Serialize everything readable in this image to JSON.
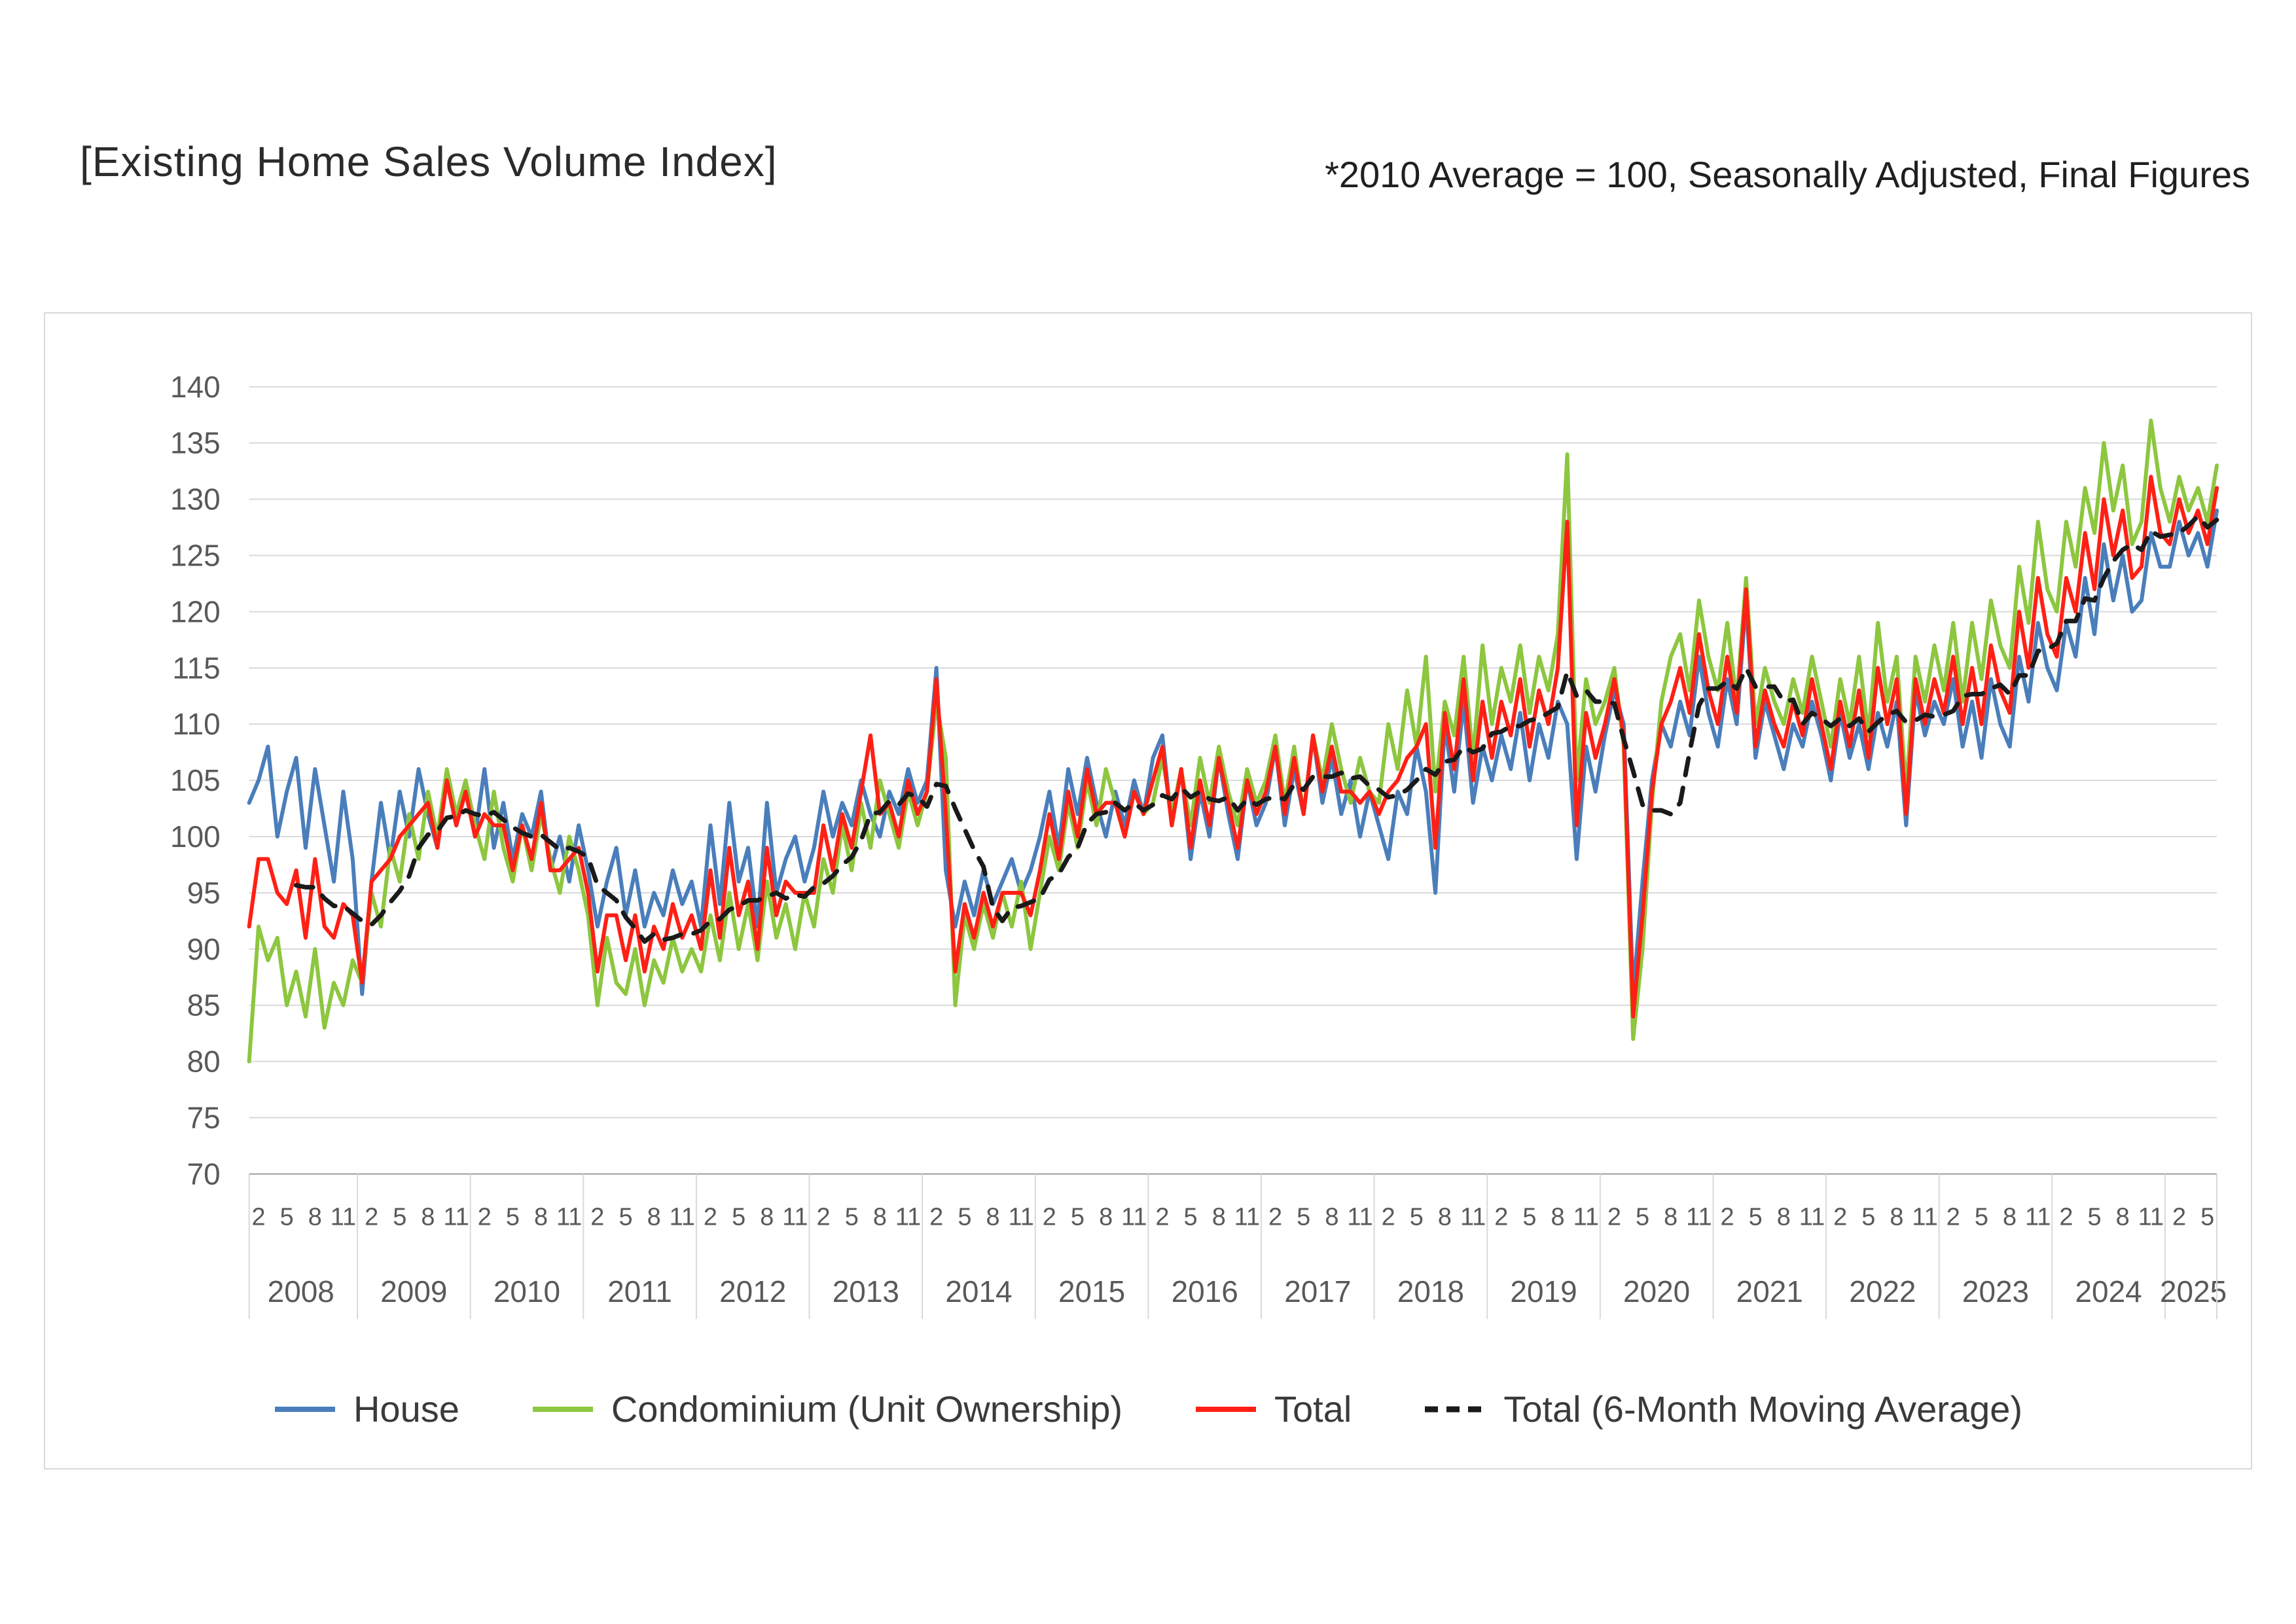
{
  "header": {
    "title": "[Existing Home Sales Volume Index]",
    "note": "*2010 Average = 100, Seasonally Adjusted, Final Figures"
  },
  "chart_data": {
    "type": "line",
    "title": "[Existing Home Sales Volume Index]",
    "subtitle": "*2010 Average = 100, Seasonally Adjusted, Final Figures",
    "xlabel": "",
    "ylabel": "",
    "ylim": [
      70,
      140
    ],
    "ytick_step": 5,
    "grid": true,
    "legend_position": "bottom",
    "start_year": 2008,
    "start_month": 1,
    "x_tick_months": [
      2,
      5,
      8,
      11
    ],
    "years": [
      2008,
      2009,
      2010,
      2011,
      2012,
      2013,
      2014,
      2015,
      2016,
      2017,
      2018,
      2019,
      2020,
      2021,
      2022,
      2023,
      2024,
      2025
    ],
    "series": [
      {
        "name": "House",
        "color": "#4A7EBB",
        "style": "solid",
        "values": [
          103,
          105,
          108,
          100,
          104,
          107,
          99,
          106,
          101,
          96,
          104,
          98,
          86,
          96,
          103,
          98,
          104,
          100,
          106,
          102,
          99,
          105,
          101,
          104,
          100,
          106,
          99,
          103,
          98,
          102,
          100,
          104,
          97,
          100,
          96,
          101,
          97,
          92,
          96,
          99,
          93,
          97,
          92,
          95,
          93,
          97,
          94,
          96,
          92,
          101,
          94,
          103,
          96,
          99,
          92,
          103,
          95,
          98,
          100,
          96,
          99,
          104,
          100,
          103,
          101,
          105,
          102,
          100,
          104,
          102,
          106,
          103,
          105,
          115,
          97,
          92,
          96,
          93,
          97,
          94,
          96,
          98,
          95,
          97,
          100,
          104,
          99,
          106,
          102,
          107,
          103,
          100,
          104,
          101,
          105,
          102,
          107,
          109,
          101,
          106,
          98,
          104,
          100,
          107,
          102,
          98,
          105,
          101,
          103,
          108,
          101,
          106,
          102,
          109,
          103,
          107,
          102,
          105,
          100,
          104,
          101,
          98,
          104,
          102,
          108,
          104,
          95,
          110,
          104,
          112,
          103,
          108,
          105,
          109,
          106,
          111,
          105,
          110,
          107,
          112,
          110,
          98,
          108,
          104,
          109,
          113,
          110,
          86,
          96,
          105,
          110,
          108,
          112,
          109,
          116,
          111,
          108,
          114,
          110,
          121,
          107,
          112,
          109,
          106,
          110,
          108,
          112,
          109,
          105,
          111,
          107,
          110,
          106,
          111,
          108,
          112,
          101,
          113,
          109,
          112,
          110,
          114,
          108,
          112,
          107,
          114,
          110,
          108,
          116,
          112,
          119,
          115,
          113,
          119,
          116,
          123,
          118,
          126,
          121,
          125,
          120,
          121,
          127,
          124,
          124,
          128,
          125,
          127,
          124,
          129
        ]
      },
      {
        "name": "Condominium (Unit Ownership)",
        "color": "#8DC63F",
        "style": "solid",
        "values": [
          80,
          92,
          89,
          91,
          85,
          88,
          84,
          90,
          83,
          87,
          85,
          89,
          87,
          95,
          92,
          99,
          96,
          102,
          98,
          104,
          100,
          106,
          102,
          105,
          101,
          98,
          104,
          99,
          96,
          101,
          97,
          102,
          98,
          95,
          100,
          97,
          93,
          85,
          91,
          87,
          86,
          90,
          85,
          89,
          87,
          91,
          88,
          90,
          88,
          93,
          89,
          95,
          90,
          94,
          89,
          96,
          91,
          94,
          90,
          95,
          92,
          98,
          95,
          101,
          97,
          103,
          99,
          105,
          102,
          99,
          104,
          101,
          104,
          112,
          107,
          85,
          93,
          90,
          94,
          91,
          95,
          92,
          96,
          90,
          95,
          100,
          97,
          103,
          99,
          105,
          101,
          106,
          103,
          100,
          104,
          102,
          103,
          107,
          102,
          106,
          101,
          107,
          103,
          108,
          104,
          101,
          106,
          103,
          105,
          109,
          103,
          108,
          102,
          109,
          105,
          110,
          106,
          103,
          107,
          104,
          103,
          110,
          106,
          113,
          108,
          116,
          104,
          112,
          109,
          116,
          107,
          117,
          110,
          115,
          112,
          117,
          111,
          116,
          113,
          118,
          134,
          105,
          114,
          110,
          112,
          115,
          108,
          82,
          90,
          103,
          112,
          116,
          118,
          113,
          121,
          116,
          113,
          119,
          112,
          123,
          110,
          115,
          112,
          110,
          114,
          111,
          116,
          112,
          108,
          114,
          110,
          116,
          109,
          119,
          112,
          116,
          104,
          116,
          112,
          117,
          113,
          119,
          112,
          119,
          114,
          121,
          117,
          115,
          124,
          119,
          128,
          122,
          120,
          128,
          124,
          131,
          127,
          135,
          129,
          133,
          126,
          128,
          137,
          131,
          128,
          132,
          129,
          131,
          128,
          133
        ]
      },
      {
        "name": "Total",
        "color": "#FF2015",
        "style": "solid",
        "values": [
          92,
          98,
          98,
          95,
          94,
          97,
          91,
          98,
          92,
          91,
          94,
          93,
          87,
          96,
          97,
          98,
          100,
          101,
          102,
          103,
          99,
          105,
          101,
          104,
          100,
          102,
          101,
          101,
          97,
          101,
          98,
          103,
          97,
          97,
          98,
          99,
          95,
          88,
          93,
          93,
          89,
          93,
          88,
          92,
          90,
          94,
          91,
          93,
          90,
          97,
          91,
          99,
          93,
          96,
          90,
          99,
          93,
          96,
          95,
          95,
          95,
          101,
          97,
          102,
          99,
          104,
          109,
          102,
          103,
          100,
          105,
          102,
          104,
          114,
          102,
          88,
          94,
          91,
          95,
          92,
          95,
          95,
          95,
          93,
          97,
          102,
          98,
          104,
          100,
          106,
          102,
          103,
          103,
          100,
          104,
          102,
          105,
          108,
          101,
          106,
          99,
          105,
          101,
          107,
          103,
          99,
          105,
          102,
          104,
          108,
          102,
          107,
          102,
          109,
          104,
          108,
          104,
          104,
          103,
          104,
          102,
          104,
          105,
          107,
          108,
          110,
          99,
          111,
          106,
          114,
          105,
          112,
          107,
          112,
          109,
          114,
          108,
          113,
          110,
          115,
          128,
          101,
          111,
          107,
          110,
          114,
          109,
          84,
          93,
          104,
          110,
          112,
          115,
          111,
          118,
          113,
          110,
          116,
          111,
          122,
          108,
          113,
          110,
          108,
          112,
          109,
          114,
          110,
          106,
          112,
          108,
          113,
          107,
          115,
          110,
          114,
          102,
          114,
          110,
          114,
          111,
          116,
          110,
          115,
          110,
          117,
          113,
          111,
          120,
          115,
          123,
          118,
          116,
          123,
          120,
          127,
          122,
          130,
          125,
          129,
          123,
          124,
          132,
          127,
          126,
          130,
          127,
          129,
          126,
          131
        ]
      },
      {
        "name": "Total (6-Month Moving Average)",
        "color": "#1a1a1a",
        "style": "dashed",
        "derived_from": "Total",
        "window": 6
      }
    ]
  }
}
